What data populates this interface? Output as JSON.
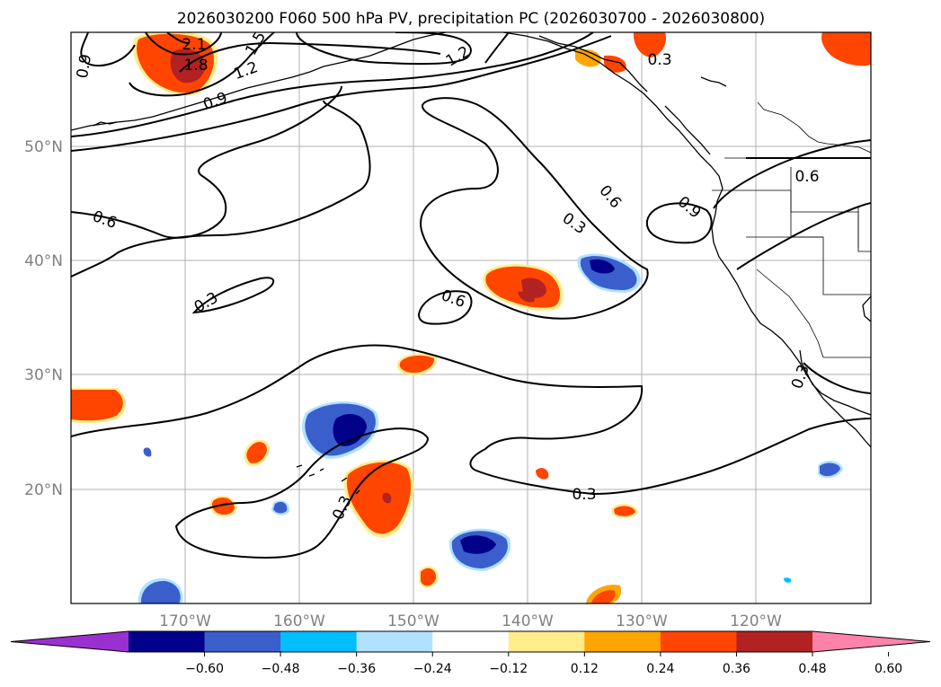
{
  "title": "2026030200 F060 500 hPa PV, precipitation PC (2026030700 - 2026030800)",
  "axes": {
    "lat_labels": [
      "50°N",
      "40°N",
      "30°N",
      "20°N"
    ],
    "lon_labels": [
      "170°W",
      "160°W",
      "150°W",
      "140°W",
      "130°W",
      "120°W"
    ]
  },
  "contour_labels": [
    "2.1",
    "1.8",
    "1.5",
    "1.2",
    "1.2",
    "0.9",
    "0.9",
    "0.9",
    "0.6",
    "0.6",
    "0.6",
    "0.6",
    "0.3",
    "0.3",
    "0.3",
    "0.3",
    "0.3",
    "0.3"
  ],
  "colorbar": {
    "ticks": [
      "−0.60",
      "−0.48",
      "−0.36",
      "−0.24",
      "−0.12",
      "0.12",
      "0.24",
      "0.36",
      "0.48",
      "0.60"
    ],
    "colors": [
      "#9b30d0",
      "#00008b",
      "#3a5fcd",
      "#00bfff",
      "#b0e2ff",
      "#ffffff",
      "#ffec8b",
      "#ffa500",
      "#ff4500",
      "#b22222",
      "#ff82ab"
    ]
  },
  "map": {
    "lat_range": [
      10,
      60
    ],
    "lon_range": [
      -180,
      -110
    ],
    "fields": [
      "500 hPa PV",
      "precipitation PC"
    ]
  }
}
